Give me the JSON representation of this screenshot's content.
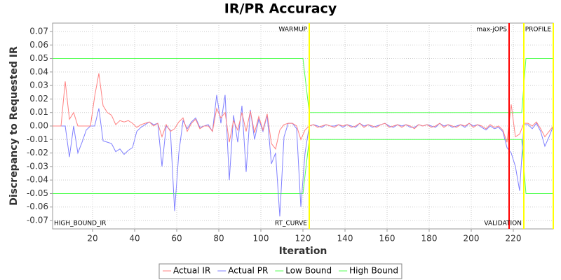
{
  "chart_data": {
    "type": "line",
    "title": "IR/PR Accuracy",
    "xlabel": "Iteration",
    "ylabel": "Discrepancy to Requested IR",
    "xlim": [
      1,
      239
    ],
    "ylim": [
      -0.0762,
      0.0762
    ],
    "xticks": [
      20,
      40,
      60,
      80,
      100,
      120,
      140,
      160,
      180,
      200,
      220
    ],
    "yticks": [
      0.07,
      0.06,
      0.05,
      0.04,
      0.03,
      0.02,
      0.01,
      {
        "value": 0,
        "label": "0.00"
      },
      -0.01,
      -0.02,
      -0.03,
      -0.04,
      -0.05,
      -0.06,
      -0.07
    ],
    "grid": true,
    "legend": "bottom",
    "x": [
      1,
      3,
      5,
      7,
      9,
      11,
      13,
      15,
      17,
      19,
      21,
      23,
      25,
      27,
      29,
      31,
      33,
      35,
      37,
      39,
      41,
      43,
      45,
      47,
      49,
      51,
      53,
      55,
      57,
      59,
      61,
      63,
      65,
      67,
      69,
      71,
      73,
      75,
      77,
      79,
      81,
      83,
      85,
      87,
      89,
      91,
      93,
      95,
      97,
      99,
      101,
      103,
      105,
      107,
      109,
      111,
      113,
      115,
      117,
      119,
      121,
      123,
      125,
      127,
      129,
      131,
      133,
      135,
      137,
      139,
      141,
      143,
      145,
      147,
      149,
      151,
      153,
      155,
      157,
      159,
      161,
      163,
      165,
      167,
      169,
      171,
      173,
      175,
      177,
      179,
      181,
      183,
      185,
      187,
      189,
      191,
      193,
      195,
      197,
      199,
      201,
      203,
      205,
      207,
      209,
      211,
      213,
      215,
      217,
      219,
      221,
      223,
      225,
      227,
      229,
      231,
      233,
      235,
      237,
      239
    ],
    "series": [
      {
        "name": "Actual IR",
        "color": "#ff8080",
        "values": [
          0,
          0,
          0,
          0.033,
          0.005,
          0.01,
          0,
          0,
          0,
          0,
          0.022,
          0.039,
          0.015,
          0.01,
          0.008,
          0.001,
          0.004,
          0.003,
          0.004,
          0.002,
          -0.001,
          0.001,
          0.002,
          0.003,
          0,
          0.002,
          -0.008,
          0.001,
          -0.004,
          -0.002,
          0.003,
          0.006,
          -0.004,
          0.002,
          0.005,
          -0.002,
          0,
          0,
          -0.004,
          0.013,
          0.006,
          0.01,
          -0.012,
          0.004,
          -0.003,
          0.01,
          -0.004,
          0.011,
          -0.005,
          0.007,
          -0.003,
          0.009,
          -0.013,
          -0.017,
          -0.003,
          0.001,
          0.002,
          0.002,
          0,
          -0.01,
          -0.003,
          0,
          0.001,
          -0.001,
          0,
          0.001,
          0,
          -0.001,
          0.001,
          0,
          0.001,
          -0.001,
          0,
          0.002,
          -0.001,
          0.001,
          0,
          -0.001,
          0.001,
          0.002,
          -0.001,
          0,
          0.001,
          -0.001,
          0.001,
          0,
          -0.002,
          0.001,
          0,
          0.001,
          -0.001,
          0,
          0.002,
          -0.001,
          0.001,
          0,
          -0.001,
          0.001,
          0,
          0.002,
          -0.001,
          0.001,
          0,
          -0.002,
          0.001,
          -0.001,
          0,
          -0.003,
          -0.012,
          0.016,
          -0.008,
          -0.006,
          0.002,
          0.002,
          0,
          0.003,
          -0.002,
          -0.008,
          -0.004,
          0
        ]
      },
      {
        "name": "Actual PR",
        "color": "#8080ff",
        "values": [
          0,
          0,
          0,
          0,
          -0.023,
          0,
          -0.02,
          -0.012,
          -0.003,
          0,
          0,
          0.013,
          -0.011,
          -0.012,
          -0.013,
          -0.019,
          -0.017,
          -0.021,
          -0.018,
          -0.016,
          -0.004,
          -0.001,
          0.001,
          0.003,
          0.001,
          0.002,
          -0.03,
          0,
          -0.003,
          -0.063,
          -0.02,
          0.004,
          -0.002,
          0.003,
          0.006,
          -0.001,
          0,
          0.001,
          -0.004,
          0.023,
          0.002,
          0.023,
          -0.04,
          0.008,
          -0.012,
          0.015,
          -0.034,
          0.012,
          -0.01,
          0.005,
          -0.004,
          0.008,
          -0.028,
          -0.02,
          -0.067,
          -0.008,
          0.002,
          0.002,
          -0.002,
          -0.06,
          -0.02,
          0,
          0.001,
          0,
          -0.001,
          0.001,
          0,
          0,
          0.001,
          -0.001,
          0.001,
          0,
          -0.001,
          0.002,
          0,
          0.001,
          -0.001,
          0,
          0.001,
          0.002,
          0,
          -0.001,
          0.001,
          0,
          0.001,
          -0.001,
          -0.001,
          0.001,
          0,
          0.001,
          0,
          -0.001,
          0.002,
          0,
          0.001,
          -0.001,
          0,
          0.001,
          -0.001,
          0.002,
          0,
          0.001,
          -0.001,
          -0.003,
          0,
          -0.002,
          -0.001,
          -0.004,
          -0.016,
          -0.02,
          -0.03,
          -0.048,
          0.001,
          0.001,
          -0.002,
          0.002,
          -0.004,
          -0.015,
          -0.008,
          0
        ]
      },
      {
        "name": "Low Bound",
        "color": "#55ff55",
        "x": [
          1,
          120,
          123,
          224,
          226,
          239
        ],
        "values": [
          -0.05,
          -0.05,
          -0.01,
          -0.01,
          -0.05,
          -0.05
        ]
      },
      {
        "name": "High Bound",
        "color": "#55ff55",
        "x": [
          1,
          120,
          123,
          224,
          226,
          239
        ],
        "values": [
          0.05,
          0.05,
          0.01,
          0.01,
          0.05,
          0.05
        ]
      }
    ],
    "vertical_lines": [
      {
        "x": 123,
        "color": "#ffff00"
      },
      {
        "x": 218,
        "color": "#ff0000"
      },
      {
        "x": 225,
        "color": "#ffff00"
      },
      {
        "x": 239,
        "color": "#ffff00"
      }
    ],
    "annotations": [
      {
        "text": "WARMUP",
        "x": 123,
        "position": "top"
      },
      {
        "text": "RT_CURVE",
        "x": 123,
        "position": "bottom"
      },
      {
        "text": "max-jOPS",
        "x": 218,
        "position": "top"
      },
      {
        "text": "VALIDATION",
        "x": 225,
        "position": "bottom"
      },
      {
        "text": "PROFILE",
        "x": 239,
        "position": "top"
      },
      {
        "text": "HIGH_BOUND_IR",
        "x": 1,
        "position": "bottom"
      }
    ]
  }
}
